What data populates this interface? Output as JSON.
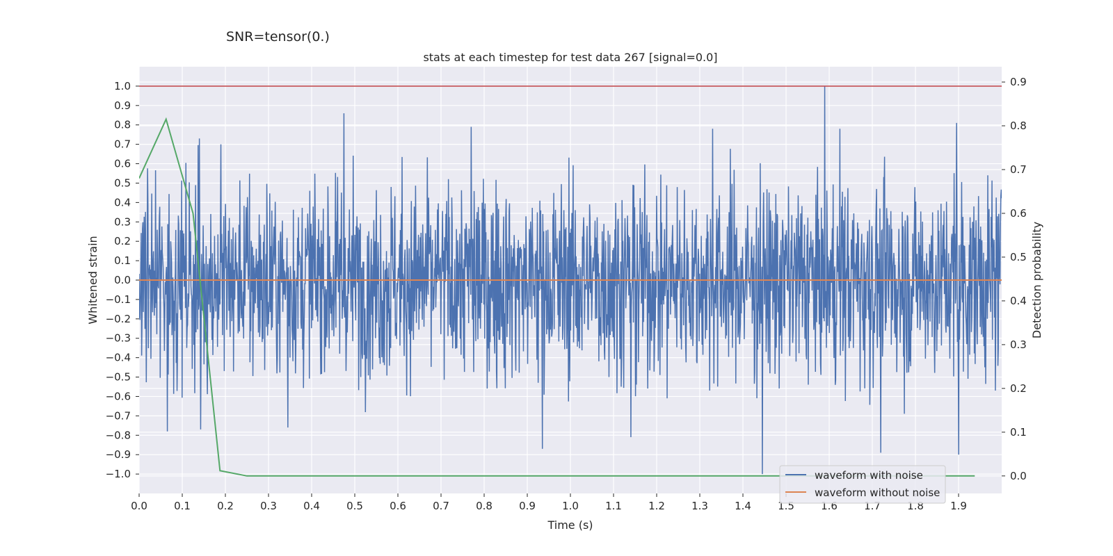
{
  "suptitle": "SNR=tensor(0.)",
  "chart_data": {
    "type": "line",
    "title": "stats at each timestep for test data 267 [signal=0.0]",
    "xlabel": "Time (s)",
    "ylabel": "Whitened strain",
    "y2label": "Detection probability",
    "xlim": [
      0.0,
      2.0
    ],
    "ylim": [
      -1.1,
      1.1
    ],
    "y2lim": [
      -0.04,
      0.935
    ],
    "x_ticks": [
      0.0,
      0.1,
      0.2,
      0.3,
      0.4,
      0.5,
      0.6,
      0.7,
      0.8,
      0.9,
      1.0,
      1.1,
      1.2,
      1.3,
      1.4,
      1.5,
      1.6,
      1.7,
      1.8,
      1.9
    ],
    "x_tick_labels": [
      "0.0",
      "0.1",
      "0.2",
      "0.3",
      "0.4",
      "0.5",
      "0.6",
      "0.7",
      "0.8",
      "0.9",
      "1.0",
      "1.1",
      "1.2",
      "1.3",
      "1.4",
      "1.5",
      "1.6",
      "1.7",
      "1.8",
      "1.9"
    ],
    "y_ticks": [
      1.0,
      0.9,
      0.8,
      0.7,
      0.6,
      0.5,
      0.4,
      0.3,
      0.2,
      0.1,
      0.0,
      -0.1,
      -0.2,
      -0.3,
      -0.4,
      -0.5,
      -0.6,
      -0.7,
      -0.8,
      -0.9,
      -1.0
    ],
    "y_tick_labels": [
      "1.0",
      "0.9",
      "0.8",
      "0.7",
      "0.6",
      "0.5",
      "0.4",
      "0.3",
      "0.2",
      "0.1",
      "0.0",
      "−0.1",
      "−0.2",
      "−0.3",
      "−0.4",
      "−0.5",
      "−0.6",
      "−0.7",
      "−0.8",
      "−0.9",
      "−1.0"
    ],
    "y2_ticks": [
      0.9,
      0.8,
      0.7,
      0.6,
      0.5,
      0.4,
      0.3,
      0.2,
      0.1,
      0.0
    ],
    "y2_tick_labels": [
      "0.9",
      "0.8",
      "0.7",
      "0.6",
      "0.5",
      "0.4",
      "0.3",
      "0.2",
      "0.1",
      "0.0"
    ],
    "grid": true,
    "legend_position": "bottom-right",
    "series": [
      {
        "name": "waveform with noise",
        "color": "#4c72b0",
        "axis": "left",
        "kind": "noise",
        "sample_count": 2048,
        "amplitude_std": 0.25,
        "range": [
          -1.0,
          1.0
        ],
        "peaks": [
          {
            "x": 0.065,
            "y": 0.78
          },
          {
            "x": 0.065,
            "y": -0.78
          },
          {
            "x": 0.14,
            "y": 0.73
          },
          {
            "x": 0.143,
            "y": -0.77
          },
          {
            "x": 0.19,
            "y": 0.7
          },
          {
            "x": 0.345,
            "y": -0.76
          },
          {
            "x": 0.475,
            "y": 0.86
          },
          {
            "x": 0.77,
            "y": 0.79
          },
          {
            "x": 0.935,
            "y": -0.87
          },
          {
            "x": 1.14,
            "y": -0.81
          },
          {
            "x": 1.33,
            "y": 0.78
          },
          {
            "x": 1.445,
            "y": -1.0
          },
          {
            "x": 1.59,
            "y": 1.0
          },
          {
            "x": 1.625,
            "y": 0.78
          },
          {
            "x": 1.72,
            "y": -0.89
          },
          {
            "x": 1.895,
            "y": 0.81
          },
          {
            "x": 1.9,
            "y": -0.9
          }
        ]
      },
      {
        "name": "waveform without noise",
        "color": "#dd8452",
        "axis": "left",
        "x": [
          0.0,
          2.0
        ],
        "y": [
          0.0,
          0.0
        ]
      },
      {
        "name": "detection probability",
        "color": "#55a868",
        "axis": "right",
        "x": [
          0.0,
          0.0625,
          0.125,
          0.1875,
          0.25,
          0.3125,
          0.375,
          0.4375,
          0.5,
          0.5625,
          0.625,
          0.6875,
          0.75,
          0.8125,
          0.875,
          0.9375,
          1.0,
          1.0625,
          1.125,
          1.1875,
          1.25,
          1.3125,
          1.375,
          1.4375,
          1.5,
          1.5625,
          1.625,
          1.6875,
          1.75,
          1.8125,
          1.875,
          1.9375
        ],
        "y": [
          0.68,
          0.815,
          0.6,
          0.012,
          0.0,
          0.0,
          0.0,
          0.0,
          0.0,
          0.0,
          0.0,
          0.0,
          0.0,
          0.0,
          0.0,
          0.0,
          0.0,
          0.0,
          0.0,
          0.0,
          0.0,
          0.0,
          0.0,
          0.0,
          0.0,
          0.0,
          0.0,
          0.0,
          0.0,
          0.0,
          0.0,
          0.0
        ]
      }
    ],
    "threshold_line": {
      "value": 1.0,
      "axis": "left",
      "color": "#c44e52"
    }
  }
}
